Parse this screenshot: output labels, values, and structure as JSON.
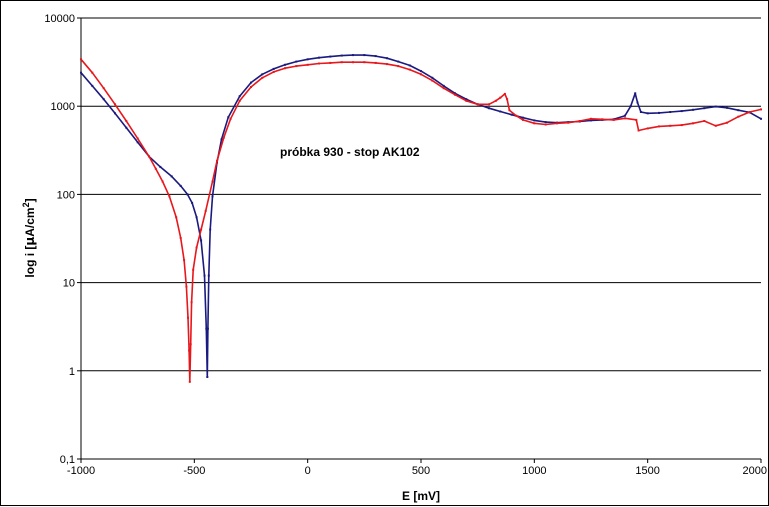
{
  "chart_data": {
    "type": "line",
    "title": "",
    "annotation": "próbka 930 - stop AK102",
    "xlabel": "E [mV]",
    "ylabel_prefix": "log i [",
    "ylabel_mu": "μ",
    "ylabel_unit": "A/cm",
    "ylabel_sup": "2",
    "ylabel_suffix": "]",
    "xlim": [
      -1000,
      2000
    ],
    "ylim": [
      0.1,
      10000
    ],
    "yscale": "log",
    "grid": "horizontal",
    "legend": "none",
    "x_ticks": [
      {
        "value": -1000,
        "label": "-1000"
      },
      {
        "value": -500,
        "label": "-500"
      },
      {
        "value": 0,
        "label": "0"
      },
      {
        "value": 500,
        "label": "500"
      },
      {
        "value": 1000,
        "label": "1000"
      },
      {
        "value": 1500,
        "label": "1500"
      },
      {
        "value": 2000,
        "label": "2000"
      }
    ],
    "y_ticks": [
      {
        "value": 0.1,
        "label": "0,1"
      },
      {
        "value": 1,
        "label": "1"
      },
      {
        "value": 10,
        "label": "10"
      },
      {
        "value": 100,
        "label": "100"
      },
      {
        "value": 1000,
        "label": "1000"
      },
      {
        "value": 10000,
        "label": "10000"
      }
    ],
    "series": [
      {
        "color": "#1a1a80",
        "points": [
          [
            -1000,
            2400
          ],
          [
            -950,
            1700
          ],
          [
            -900,
            1200
          ],
          [
            -850,
            830
          ],
          [
            -800,
            570
          ],
          [
            -750,
            390
          ],
          [
            -700,
            270
          ],
          [
            -650,
            205
          ],
          [
            -600,
            160
          ],
          [
            -560,
            125
          ],
          [
            -530,
            100
          ],
          [
            -510,
            80
          ],
          [
            -490,
            55
          ],
          [
            -470,
            30
          ],
          [
            -455,
            12
          ],
          [
            -447,
            3
          ],
          [
            -443,
            0.85
          ],
          [
            -440,
            3
          ],
          [
            -436,
            12
          ],
          [
            -430,
            40
          ],
          [
            -420,
            95
          ],
          [
            -400,
            230
          ],
          [
            -380,
            420
          ],
          [
            -350,
            750
          ],
          [
            -300,
            1300
          ],
          [
            -250,
            1850
          ],
          [
            -200,
            2300
          ],
          [
            -150,
            2650
          ],
          [
            -100,
            2950
          ],
          [
            -50,
            3200
          ],
          [
            0,
            3400
          ],
          [
            50,
            3550
          ],
          [
            100,
            3650
          ],
          [
            150,
            3750
          ],
          [
            200,
            3800
          ],
          [
            250,
            3800
          ],
          [
            300,
            3700
          ],
          [
            350,
            3500
          ],
          [
            400,
            3200
          ],
          [
            450,
            2900
          ],
          [
            500,
            2500
          ],
          [
            550,
            2100
          ],
          [
            600,
            1700
          ],
          [
            650,
            1400
          ],
          [
            700,
            1200
          ],
          [
            750,
            1050
          ],
          [
            800,
            950
          ],
          [
            850,
            870
          ],
          [
            900,
            800
          ],
          [
            950,
            740
          ],
          [
            1000,
            690
          ],
          [
            1050,
            660
          ],
          [
            1100,
            650
          ],
          [
            1150,
            660
          ],
          [
            1200,
            670
          ],
          [
            1250,
            690
          ],
          [
            1300,
            700
          ],
          [
            1350,
            710
          ],
          [
            1400,
            780
          ],
          [
            1425,
            1000
          ],
          [
            1445,
            1400
          ],
          [
            1455,
            1100
          ],
          [
            1470,
            860
          ],
          [
            1500,
            830
          ],
          [
            1550,
            840
          ],
          [
            1600,
            860
          ],
          [
            1650,
            880
          ],
          [
            1700,
            910
          ],
          [
            1750,
            950
          ],
          [
            1800,
            990
          ],
          [
            1850,
            960
          ],
          [
            1900,
            900
          ],
          [
            1950,
            850
          ],
          [
            2000,
            720
          ]
        ]
      },
      {
        "color": "#e8171c",
        "points": [
          [
            -1000,
            3400
          ],
          [
            -950,
            2400
          ],
          [
            -900,
            1600
          ],
          [
            -850,
            1050
          ],
          [
            -800,
            680
          ],
          [
            -750,
            430
          ],
          [
            -700,
            270
          ],
          [
            -670,
            195
          ],
          [
            -640,
            140
          ],
          [
            -610,
            95
          ],
          [
            -580,
            55
          ],
          [
            -560,
            32
          ],
          [
            -545,
            18
          ],
          [
            -535,
            9
          ],
          [
            -528,
            4
          ],
          [
            -523,
            1.7
          ],
          [
            -520,
            0.75
          ],
          [
            -516,
            2
          ],
          [
            -512,
            6
          ],
          [
            -505,
            14
          ],
          [
            -490,
            25
          ],
          [
            -470,
            40
          ],
          [
            -450,
            65
          ],
          [
            -420,
            140
          ],
          [
            -400,
            240
          ],
          [
            -370,
            440
          ],
          [
            -340,
            720
          ],
          [
            -300,
            1150
          ],
          [
            -250,
            1650
          ],
          [
            -200,
            2100
          ],
          [
            -150,
            2450
          ],
          [
            -100,
            2700
          ],
          [
            -50,
            2850
          ],
          [
            0,
            2950
          ],
          [
            50,
            3050
          ],
          [
            100,
            3100
          ],
          [
            150,
            3150
          ],
          [
            200,
            3150
          ],
          [
            250,
            3150
          ],
          [
            300,
            3100
          ],
          [
            350,
            3000
          ],
          [
            400,
            2850
          ],
          [
            450,
            2600
          ],
          [
            500,
            2300
          ],
          [
            550,
            1950
          ],
          [
            600,
            1600
          ],
          [
            650,
            1350
          ],
          [
            700,
            1150
          ],
          [
            750,
            1050
          ],
          [
            800,
            1050
          ],
          [
            830,
            1150
          ],
          [
            850,
            1250
          ],
          [
            870,
            1380
          ],
          [
            880,
            1200
          ],
          [
            890,
            900
          ],
          [
            920,
            780
          ],
          [
            950,
            700
          ],
          [
            1000,
            640
          ],
          [
            1050,
            620
          ],
          [
            1100,
            640
          ],
          [
            1150,
            650
          ],
          [
            1200,
            680
          ],
          [
            1250,
            720
          ],
          [
            1300,
            710
          ],
          [
            1350,
            700
          ],
          [
            1400,
            730
          ],
          [
            1450,
            700
          ],
          [
            1460,
            530
          ],
          [
            1500,
            560
          ],
          [
            1550,
            590
          ],
          [
            1600,
            600
          ],
          [
            1650,
            610
          ],
          [
            1700,
            640
          ],
          [
            1750,
            680
          ],
          [
            1800,
            600
          ],
          [
            1850,
            650
          ],
          [
            1900,
            760
          ],
          [
            1950,
            860
          ],
          [
            2000,
            920
          ]
        ]
      }
    ]
  }
}
